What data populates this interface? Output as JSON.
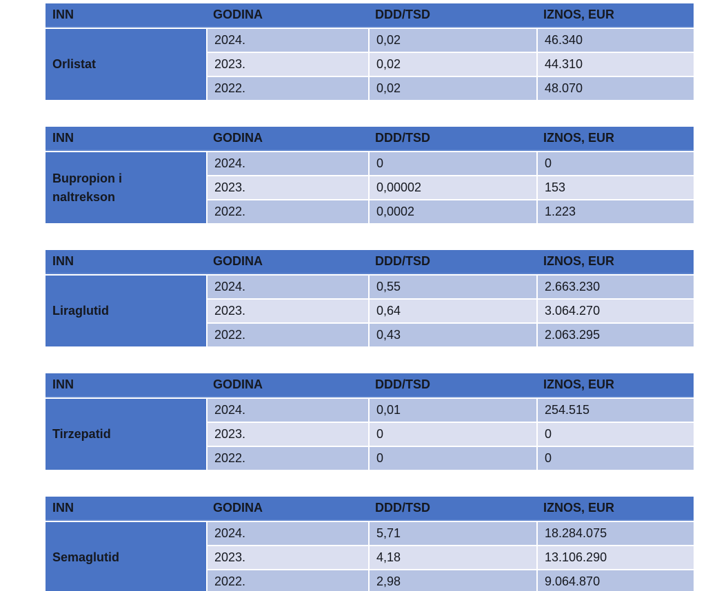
{
  "columns": [
    "INN",
    "GODINA",
    "DDD/TSD",
    "IZNOS, EUR"
  ],
  "colors": {
    "header_blue": "#4a74c5",
    "inn_cell_blue": "#4a74c5",
    "row_alt_dark": "#b6c3e3",
    "row_alt_light": "#dbdff0",
    "text": "#15181f",
    "separator": "#ffffff"
  },
  "tables": [
    {
      "inn": "Orlistat",
      "rows": [
        {
          "godina": "2024.",
          "ddd_tsd": "0,02",
          "iznos_eur": "46.340"
        },
        {
          "godina": "2023.",
          "ddd_tsd": "0,02",
          "iznos_eur": "44.310"
        },
        {
          "godina": "2022.",
          "ddd_tsd": "0,02",
          "iznos_eur": "48.070"
        }
      ]
    },
    {
      "inn": "Bupropion i naltrekson",
      "rows": [
        {
          "godina": "2024.",
          "ddd_tsd": "0",
          "iznos_eur": "0"
        },
        {
          "godina": "2023.",
          "ddd_tsd": "0,00002",
          "iznos_eur": "153"
        },
        {
          "godina": "2022.",
          "ddd_tsd": "0,0002",
          "iznos_eur": "1.223"
        }
      ]
    },
    {
      "inn": "Liraglutid",
      "rows": [
        {
          "godina": "2024.",
          "ddd_tsd": "0,55",
          "iznos_eur": "2.663.230"
        },
        {
          "godina": "2023.",
          "ddd_tsd": "0,64",
          "iznos_eur": "3.064.270"
        },
        {
          "godina": "2022.",
          "ddd_tsd": "0,43",
          "iznos_eur": "2.063.295"
        }
      ]
    },
    {
      "inn": "Tirzepatid",
      "rows": [
        {
          "godina": "2024.",
          "ddd_tsd": "0,01",
          "iznos_eur": "254.515"
        },
        {
          "godina": "2023.",
          "ddd_tsd": "0",
          "iznos_eur": "0"
        },
        {
          "godina": "2022.",
          "ddd_tsd": "0",
          "iznos_eur": "0"
        }
      ]
    },
    {
      "inn": "Semaglutid",
      "rows": [
        {
          "godina": "2024.",
          "ddd_tsd": "5,71",
          "iznos_eur": "18.284.075"
        },
        {
          "godina": "2023.",
          "ddd_tsd": "4,18",
          "iznos_eur": "13.106.290"
        },
        {
          "godina": "2022.",
          "ddd_tsd": "2,98",
          "iznos_eur": "9.064.870"
        }
      ]
    }
  ]
}
